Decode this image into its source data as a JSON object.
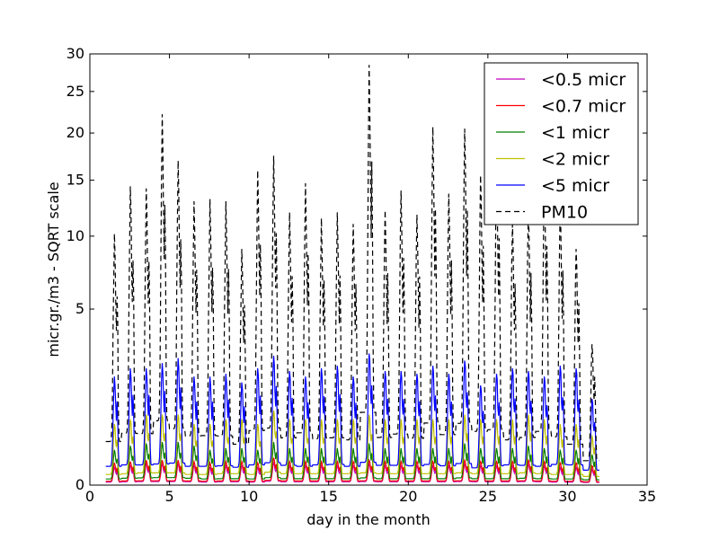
{
  "chart_data": {
    "type": "line",
    "title": "",
    "xlabel": "day in the month",
    "ylabel": "micr.gr./m3 - SQRT scale",
    "xlim": [
      0,
      35
    ],
    "ylim": [
      0,
      30
    ],
    "y_scale": "sqrt",
    "grid": false,
    "legend_position": "top-right",
    "x_ticks": [
      0,
      5,
      10,
      15,
      20,
      25,
      30,
      35
    ],
    "x_tick_labels": [
      "0",
      "5",
      "10",
      "15",
      "20",
      "25",
      "30",
      "35"
    ],
    "y_ticks": [
      0,
      5,
      10,
      15,
      20,
      25,
      30
    ],
    "y_tick_labels": [
      "0",
      "5",
      "10",
      "15",
      "20",
      "25",
      "30"
    ],
    "day_start": 1.0,
    "day_end": 32.0,
    "series": [
      {
        "name": "<0.5 micr",
        "color": "#bf00bf",
        "dash": "solid",
        "daily_peaks": [
          0.05,
          0.06,
          0.07,
          0.07,
          0.07,
          0.06,
          0.05,
          0.06,
          0.06,
          0.05,
          0.08,
          0.06,
          0.06,
          0.06,
          0.06,
          0.06,
          0.07,
          0.06,
          0.06,
          0.06,
          0.06,
          0.06,
          0.07,
          0.06,
          0.06,
          0.06,
          0.07,
          0.06,
          0.05,
          0.05,
          0.04
        ]
      },
      {
        "name": "<0.7 micr",
        "color": "#ff0000",
        "dash": "solid",
        "daily_peaks": [
          0.08,
          0.09,
          0.1,
          0.1,
          0.1,
          0.09,
          0.08,
          0.09,
          0.09,
          0.08,
          0.12,
          0.09,
          0.09,
          0.09,
          0.09,
          0.09,
          0.1,
          0.09,
          0.09,
          0.09,
          0.09,
          0.09,
          0.1,
          0.09,
          0.09,
          0.09,
          0.1,
          0.09,
          0.08,
          0.08,
          0.06
        ]
      },
      {
        "name": "<1 micr",
        "color": "#008000",
        "dash": "solid",
        "daily_peaks": [
          0.2,
          0.25,
          0.28,
          0.3,
          0.3,
          0.25,
          0.2,
          0.22,
          0.22,
          0.2,
          0.3,
          0.22,
          0.22,
          0.22,
          0.22,
          0.22,
          0.28,
          0.22,
          0.22,
          0.22,
          0.22,
          0.22,
          0.28,
          0.22,
          0.22,
          0.22,
          0.25,
          0.22,
          0.2,
          0.2,
          0.15
        ]
      },
      {
        "name": "<2 micr",
        "color": "#bfbf00",
        "dash": "solid",
        "daily_peaks": [
          0.6,
          0.7,
          0.8,
          0.8,
          0.8,
          0.6,
          0.6,
          0.7,
          0.7,
          0.6,
          0.9,
          0.7,
          0.7,
          0.7,
          0.7,
          0.7,
          0.8,
          0.7,
          0.7,
          0.7,
          0.7,
          0.7,
          0.8,
          0.7,
          0.7,
          0.7,
          0.8,
          0.7,
          0.6,
          0.6,
          0.4
        ]
      },
      {
        "name": "<5 micr",
        "color": "#0000ff",
        "dash": "solid",
        "daily_peaks": [
          1.9,
          2.2,
          2.2,
          2.4,
          2.6,
          1.9,
          1.9,
          2.0,
          1.7,
          2.2,
          2.7,
          2.1,
          1.9,
          2.2,
          2.3,
          1.9,
          2.8,
          2.1,
          2.1,
          2.0,
          2.3,
          2.0,
          2.5,
          1.6,
          2.0,
          2.2,
          2.1,
          1.9,
          2.3,
          2.2,
          1.2
        ]
      },
      {
        "name": "PM10",
        "color": "#000000",
        "dash": "dashed",
        "daily_peaks": [
          10.2,
          14.4,
          14.2,
          22.2,
          17.0,
          13.0,
          13.2,
          13.0,
          9.0,
          16.0,
          17.5,
          12.0,
          14.7,
          11.5,
          12.0,
          11.0,
          28.5,
          12.2,
          14.0,
          11.8,
          20.7,
          13.7,
          20.5,
          15.5,
          16.5,
          11.0,
          12.2,
          15.5,
          12.5,
          9.0,
          3.2
        ]
      }
    ]
  }
}
